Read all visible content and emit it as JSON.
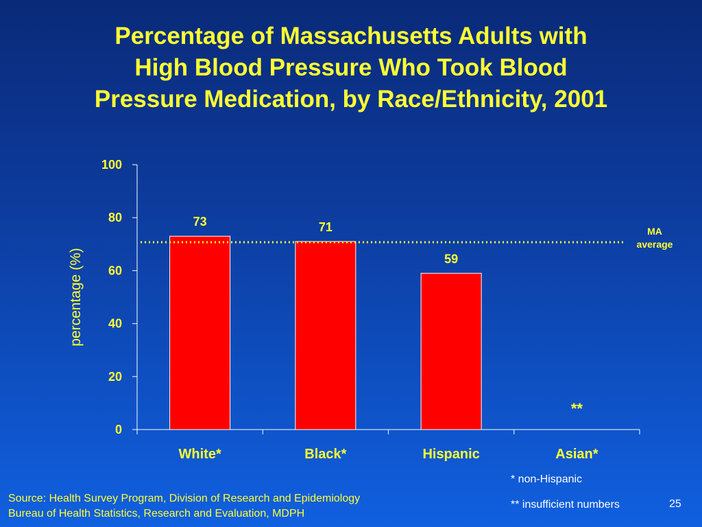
{
  "title_lines": [
    "Percentage of Massachusetts Adults with",
    "High Blood Pressure Who Took Blood",
    "Pressure Medication, by Race/Ethnicity, 2001"
  ],
  "colors": {
    "title": "#ffff33",
    "bar": "#ff0000",
    "bar_edge": "#ffffff",
    "axis_text": "#ffff33",
    "ref_line": "#ffff33"
  },
  "chart_data": {
    "type": "bar",
    "categories": [
      "White*",
      "Black*",
      "Hispanic",
      "Asian*"
    ],
    "values": [
      73,
      71,
      59,
      null
    ],
    "data_labels": [
      "73",
      "71",
      "59",
      "**"
    ],
    "ylabel": "percentage (%)",
    "ylim": [
      0,
      100
    ],
    "yticks": [
      0,
      20,
      40,
      60,
      80,
      100
    ],
    "reference_line": {
      "value": 71,
      "label_lines": [
        "MA",
        "average"
      ],
      "style": "dotted"
    },
    "grid": false
  },
  "footnotes": [
    "* non-Hispanic",
    "** insufficient numbers"
  ],
  "source_lines": [
    "Source: Health Survey Program, Division of Research and Epidemiology",
    "Bureau of Health Statistics, Research and Evaluation, MDPH"
  ],
  "page_number": "25"
}
